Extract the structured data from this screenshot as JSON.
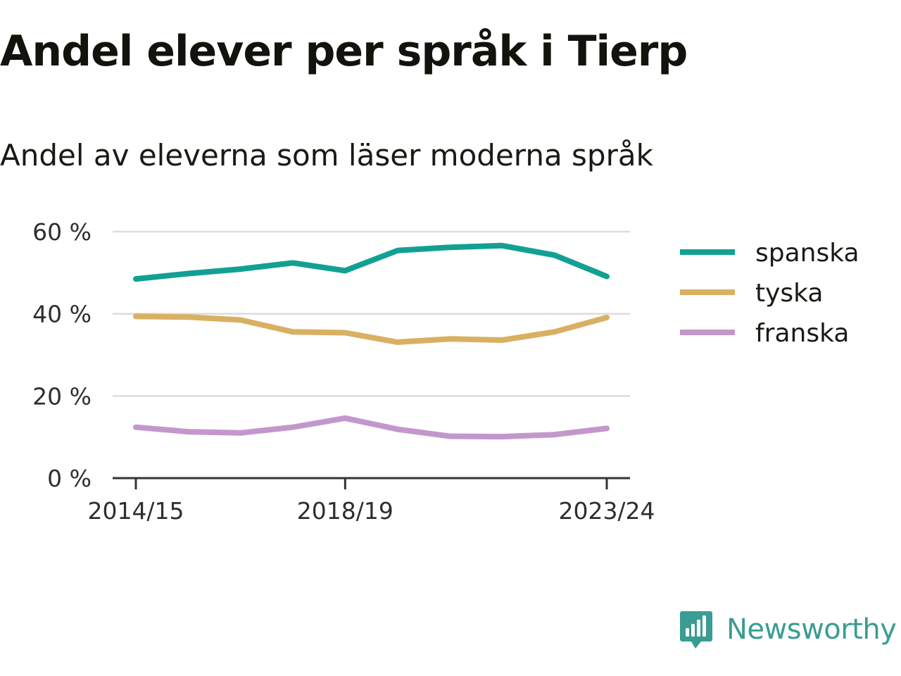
{
  "header": {
    "title": "Andel elever per språk i Tierp",
    "subtitle": "Andel av eleverna som läser moderna språk"
  },
  "brand": {
    "name": "Newsworthy",
    "icon": "newsworthy-logo-icon",
    "color": "#3a9c92"
  },
  "chart_data": {
    "type": "line",
    "title": "Andel elever per språk i Tierp",
    "subtitle": "Andel av eleverna som läser moderna språk",
    "xlabel": "",
    "ylabel": "",
    "x": [
      "2014/15",
      "2015/16",
      "2016/17",
      "2017/18",
      "2018/19",
      "2019/20",
      "2020/21",
      "2021/22",
      "2022/23",
      "2023/24"
    ],
    "x_tick_labels": [
      "2014/15",
      "2018/19",
      "2023/24"
    ],
    "y_ticks": [
      0,
      20,
      40,
      60
    ],
    "y_tick_labels": [
      "0 %",
      "20 %",
      "40 %",
      "60 %"
    ],
    "ylim": [
      0,
      60
    ],
    "grid": true,
    "legend_position": "right",
    "series": [
      {
        "name": "spanska",
        "color": "#12a094",
        "values": [
          48.5,
          49.8,
          50.9,
          52.4,
          50.5,
          55.4,
          56.2,
          56.6,
          54.3,
          49.1
        ]
      },
      {
        "name": "tyska",
        "color": "#d9b062",
        "values": [
          39.4,
          39.2,
          38.5,
          35.6,
          35.4,
          33.1,
          33.9,
          33.6,
          35.6,
          39.1
        ]
      },
      {
        "name": "franska",
        "color": "#c397cc",
        "values": [
          12.4,
          11.3,
          11.0,
          12.4,
          14.6,
          11.9,
          10.2,
          10.1,
          10.6,
          12.1
        ]
      }
    ]
  }
}
